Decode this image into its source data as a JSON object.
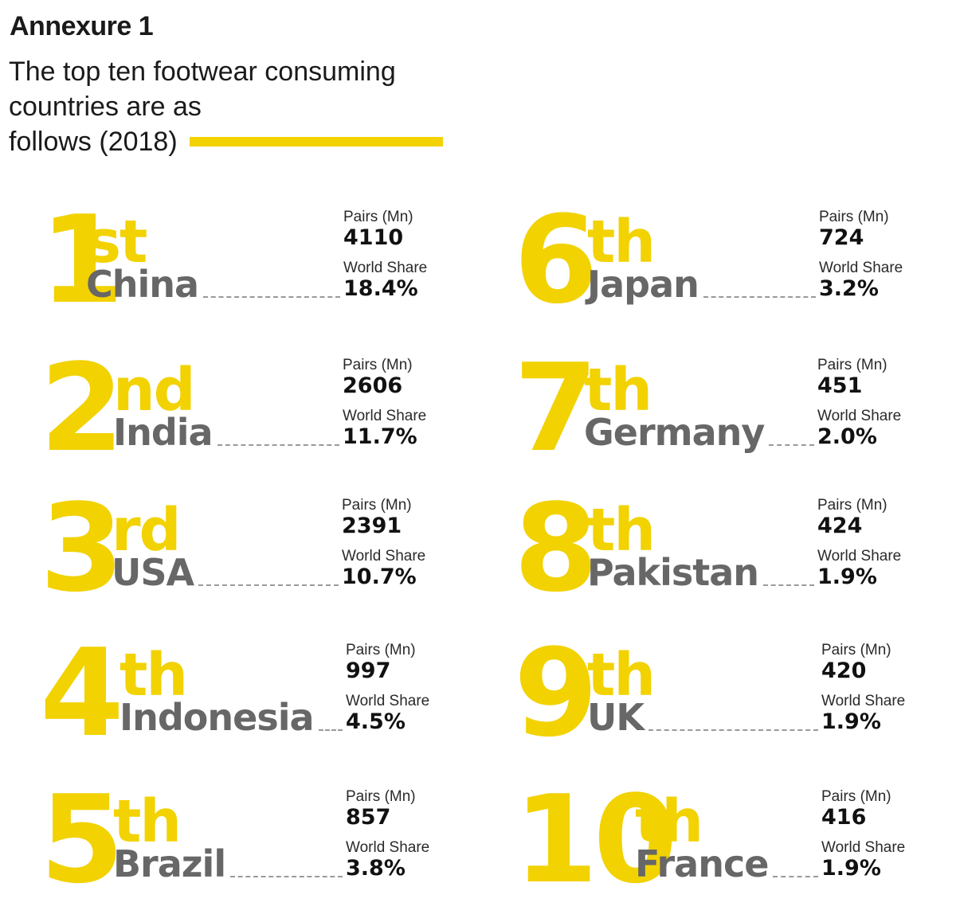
{
  "header": {
    "annexure": "Annexure 1",
    "title_lines": [
      "The top ten footwear consuming",
      "countries are as",
      "follows (2018)"
    ]
  },
  "labels": {
    "pairs": "Pairs (Mn)",
    "share": "World Share"
  },
  "colors": {
    "accent": "#f2d200",
    "country": "#676767",
    "text": "#1a1a1a"
  },
  "rankings": [
    {
      "num": "1",
      "suffix": "st",
      "country": "China",
      "pairs": "4110",
      "share": "18.4%"
    },
    {
      "num": "2",
      "suffix": "nd",
      "country": "India",
      "pairs": "2606",
      "share": "11.7%"
    },
    {
      "num": "3",
      "suffix": "rd",
      "country": "USA",
      "pairs": "2391",
      "share": "10.7%"
    },
    {
      "num": "4",
      "suffix": "th",
      "country": "Indonesia",
      "pairs": "997",
      "share": "4.5%"
    },
    {
      "num": "5",
      "suffix": "th",
      "country": "Brazil",
      "pairs": "857",
      "share": "3.8%"
    },
    {
      "num": "6",
      "suffix": "th",
      "country": "Japan",
      "pairs": "724",
      "share": "3.2%"
    },
    {
      "num": "7",
      "suffix": "th",
      "country": "Germany",
      "pairs": "451",
      "share": "2.0%"
    },
    {
      "num": "8",
      "suffix": "th",
      "country": "Pakistan",
      "pairs": "424",
      "share": "1.9%"
    },
    {
      "num": "9",
      "suffix": "th",
      "country": "UK",
      "pairs": "420",
      "share": "1.9%"
    },
    {
      "num": "10",
      "suffix": "th",
      "country": "France",
      "pairs": "416",
      "share": "1.9%"
    }
  ]
}
